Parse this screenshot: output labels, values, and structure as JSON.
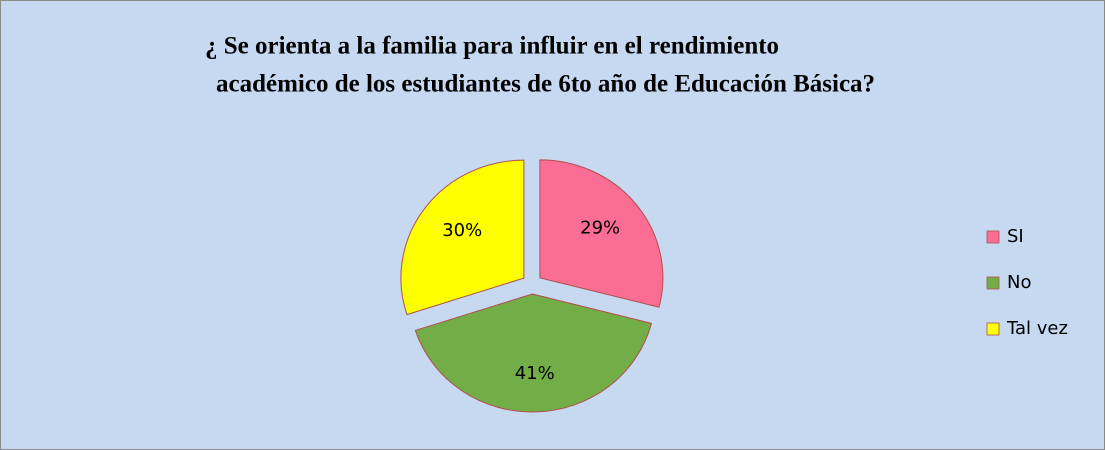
{
  "chart_data": {
    "type": "pie",
    "title": [
      "¿ Se orienta a la familia para influir en el rendimiento",
      "académico de los estudiantes de 6to año de Educación Básica?"
    ],
    "categories": [
      "SI",
      "No",
      "Tal vez"
    ],
    "values": [
      29,
      41,
      30
    ],
    "value_labels": [
      "29%",
      "41%",
      "30%"
    ],
    "colors": [
      "#fb6d92",
      "#72ad47",
      "#ffff00"
    ],
    "legend": "right"
  }
}
